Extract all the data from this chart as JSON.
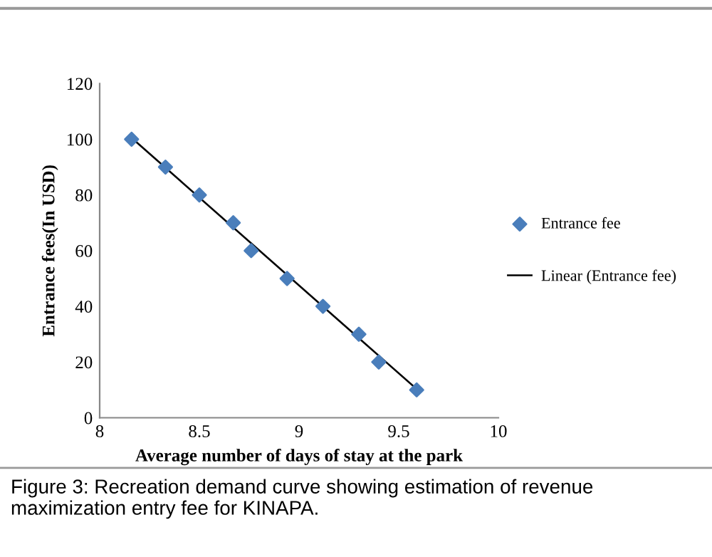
{
  "chart_data": {
    "type": "scatter",
    "xlabel": "Average number of days of stay at the park",
    "ylabel": "Entrance fees(In USD)",
    "xlim": [
      8,
      10
    ],
    "xticks": [
      8,
      8.5,
      9,
      9.5,
      10
    ],
    "ylim": [
      0,
      120
    ],
    "yticks": [
      0,
      20,
      40,
      60,
      80,
      100,
      120
    ],
    "grid": false,
    "legend": "right",
    "marker": "diamond",
    "series": [
      {
        "name": "Entrance fee",
        "color": "#4a7ebb",
        "x": [
          8.16,
          8.33,
          8.5,
          8.67,
          8.76,
          8.94,
          9.12,
          9.3,
          9.4,
          9.59
        ],
        "values": [
          100,
          90,
          80,
          70,
          60,
          50,
          40,
          30,
          20,
          10
        ]
      },
      {
        "name": "Linear (Entrance fee)",
        "type": "line",
        "color": "#000000",
        "line_style": "solid",
        "marker": "none",
        "x": [
          8.16,
          9.59
        ],
        "values": [
          100.5,
          10.3
        ]
      }
    ],
    "annotations": [
      "Figure 3: Recreation demand curve showing estimation of revenue maximization entry fee for KINAPA."
    ]
  }
}
